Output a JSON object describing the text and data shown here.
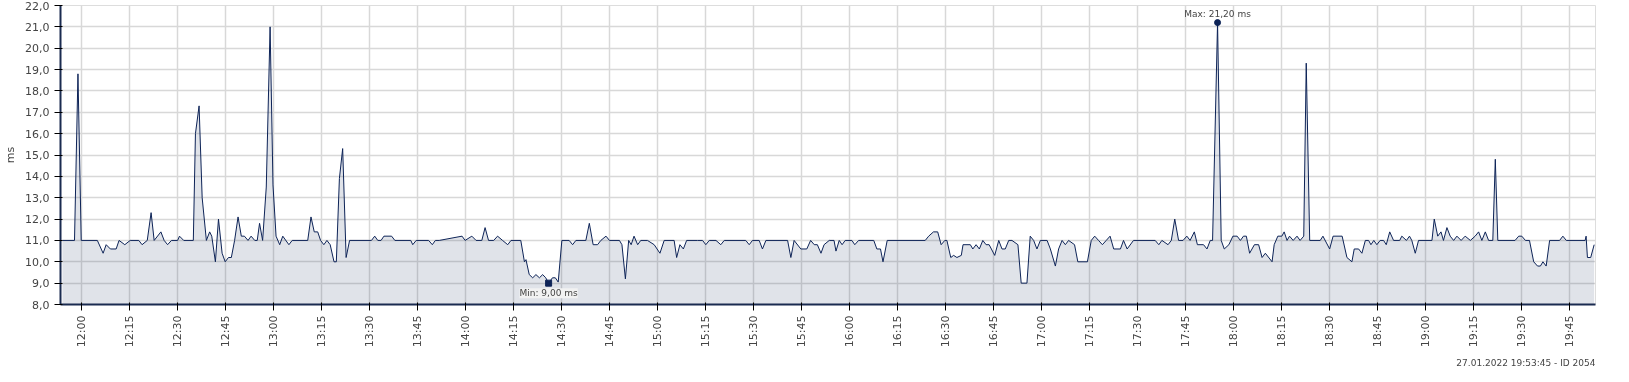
{
  "chart_data": {
    "type": "area",
    "ylabel": "ms",
    "grid": true,
    "marker": "none",
    "xlim": [
      11.89,
      19.887
    ],
    "ylim": [
      8,
      22
    ],
    "yticks": [
      {
        "value": 8,
        "label": "8,0"
      },
      {
        "value": 9,
        "label": "9,0"
      },
      {
        "value": 10,
        "label": "10,0"
      },
      {
        "value": 11,
        "label": "11,0"
      },
      {
        "value": 12,
        "label": "12,0"
      },
      {
        "value": 13,
        "label": "13,0"
      },
      {
        "value": 14,
        "label": "14,0"
      },
      {
        "value": 15,
        "label": "15,0"
      },
      {
        "value": 16,
        "label": "16,0"
      },
      {
        "value": 17,
        "label": "17,0"
      },
      {
        "value": 18,
        "label": "18,0"
      },
      {
        "value": 19,
        "label": "19,0"
      },
      {
        "value": 20,
        "label": "20,0"
      },
      {
        "value": 21,
        "label": "21,0"
      },
      {
        "value": 22,
        "label": "22,0"
      }
    ],
    "xticks": [
      {
        "value": 12,
        "label": "12:00"
      },
      {
        "value": 12.25,
        "label": "12:15"
      },
      {
        "value": 12.5,
        "label": "12:30"
      },
      {
        "value": 12.75,
        "label": "12:45"
      },
      {
        "value": 13,
        "label": "13:00"
      },
      {
        "value": 13.25,
        "label": "13:15"
      },
      {
        "value": 13.5,
        "label": "13:30"
      },
      {
        "value": 13.75,
        "label": "13:45"
      },
      {
        "value": 14,
        "label": "14:00"
      },
      {
        "value": 14.25,
        "label": "14:15"
      },
      {
        "value": 14.5,
        "label": "14:30"
      },
      {
        "value": 14.75,
        "label": "14:45"
      },
      {
        "value": 15,
        "label": "15:00"
      },
      {
        "value": 15.25,
        "label": "15:15"
      },
      {
        "value": 15.5,
        "label": "15:30"
      },
      {
        "value": 15.75,
        "label": "15:45"
      },
      {
        "value": 16,
        "label": "16:00"
      },
      {
        "value": 16.25,
        "label": "16:15"
      },
      {
        "value": 16.5,
        "label": "16:30"
      },
      {
        "value": 16.75,
        "label": "16:45"
      },
      {
        "value": 17,
        "label": "17:00"
      },
      {
        "value": 17.25,
        "label": "17:15"
      },
      {
        "value": 17.5,
        "label": "17:30"
      },
      {
        "value": 17.75,
        "label": "17:45"
      },
      {
        "value": 18,
        "label": "18:00"
      },
      {
        "value": 18.25,
        "label": "18:15"
      },
      {
        "value": 18.5,
        "label": "18:30"
      },
      {
        "value": 18.75,
        "label": "18:45"
      },
      {
        "value": 19,
        "label": "19:00"
      },
      {
        "value": 19.25,
        "label": "19:15"
      },
      {
        "value": 19.5,
        "label": "19:30"
      },
      {
        "value": 19.75,
        "label": "19:45"
      }
    ],
    "annotations": [
      {
        "text": "Min: 9,00 ms",
        "x": 14.433,
        "y": 9.0
      },
      {
        "text": "Max: 21,20 ms",
        "x": 17.918,
        "y": 21.2
      },
      "27.01.2022 19:53:45 - ID 2054"
    ],
    "series": [
      {
        "color": "#0d2357",
        "x": [
          11.9,
          11.963,
          11.981,
          11.998,
          12.082,
          12.112,
          12.128,
          12.15,
          12.18,
          12.195,
          12.225,
          12.253,
          12.298,
          12.315,
          12.342,
          12.362,
          12.378,
          12.413,
          12.43,
          12.448,
          12.468,
          12.5,
          12.51,
          12.532,
          12.582,
          12.593,
          12.612,
          12.628,
          12.65,
          12.667,
          12.678,
          12.697,
          12.713,
          12.732,
          12.748,
          12.765,
          12.78,
          12.797,
          12.815,
          12.832,
          12.848,
          12.867,
          12.883,
          12.902,
          12.915,
          12.927,
          12.943,
          12.962,
          12.982,
          12.997,
          13.013,
          13.032,
          13.048,
          13.08,
          13.097,
          13.178,
          13.195,
          13.212,
          13.23,
          13.245,
          13.262,
          13.278,
          13.295,
          13.315,
          13.327,
          13.343,
          13.36,
          13.378,
          13.396,
          13.51,
          13.527,
          13.543,
          13.56,
          13.575,
          13.615,
          13.632,
          13.715,
          13.725,
          13.743,
          13.808,
          13.827,
          13.843,
          13.863,
          13.982,
          13.998,
          14.033,
          14.055,
          14.085,
          14.102,
          14.12,
          14.147,
          14.167,
          14.193,
          14.22,
          14.237,
          14.288,
          14.307,
          14.315,
          14.332,
          14.35,
          14.367,
          14.385,
          14.402,
          14.418,
          14.433,
          14.453,
          14.468,
          14.483,
          14.502,
          14.54,
          14.558,
          14.575,
          14.627,
          14.645,
          14.665,
          14.688,
          14.705,
          14.732,
          14.75,
          14.802,
          14.815,
          14.833,
          14.85,
          14.863,
          14.878,
          14.897,
          14.913,
          14.948,
          14.983,
          15.013,
          15.035,
          15.087,
          15.1,
          15.117,
          15.135,
          15.152,
          15.208,
          15.235,
          15.252,
          15.27,
          15.305,
          15.33,
          15.348,
          15.46,
          15.478,
          15.495,
          15.53,
          15.547,
          15.565,
          15.678,
          15.695,
          15.712,
          15.747,
          15.778,
          15.798,
          15.817,
          15.833,
          15.852,
          15.868,
          15.895,
          15.92,
          15.93,
          15.947,
          15.962,
          15.978,
          16.013,
          16.028,
          16.048,
          16.127,
          16.143,
          16.162,
          16.175,
          16.197,
          16.395,
          16.413,
          16.438,
          16.46,
          16.478,
          16.497,
          16.508,
          16.528,
          16.543,
          16.56,
          16.583,
          16.592,
          16.63,
          16.643,
          16.66,
          16.677,
          16.695,
          16.712,
          16.728,
          16.757,
          16.778,
          16.795,
          16.812,
          16.83,
          16.847,
          16.878,
          16.895,
          16.925,
          16.942,
          16.96,
          16.977,
          16.995,
          17.03,
          17.047,
          17.073,
          17.09,
          17.108,
          17.125,
          17.142,
          17.173,
          17.19,
          17.24,
          17.26,
          17.278,
          17.298,
          17.318,
          17.338,
          17.358,
          17.377,
          17.412,
          17.428,
          17.447,
          17.48,
          17.593,
          17.612,
          17.628,
          17.66,
          17.677,
          17.695,
          17.715,
          17.738,
          17.758,
          17.775,
          17.797,
          17.813,
          17.845,
          17.863,
          17.88,
          17.892,
          17.918,
          17.937,
          17.953,
          17.977,
          17.998,
          18.02,
          18.037,
          18.053,
          18.068,
          18.085,
          18.11,
          18.132,
          18.15,
          18.167,
          18.202,
          18.213,
          18.232,
          18.253,
          18.265,
          18.28,
          18.293,
          18.312,
          18.332,
          18.348,
          18.367,
          18.38,
          18.398,
          18.453,
          18.467,
          18.502,
          18.52,
          18.567,
          18.592,
          18.618,
          18.63,
          18.653,
          18.67,
          18.688,
          18.705,
          18.717,
          18.732,
          18.748,
          18.765,
          18.783,
          18.797,
          18.815,
          18.835,
          18.867,
          18.878,
          18.902,
          18.918,
          18.93,
          18.948,
          18.965,
          19.035,
          19.047,
          19.065,
          19.082,
          19.095,
          19.113,
          19.13,
          19.148,
          19.165,
          19.187,
          19.208,
          19.235,
          19.26,
          19.278,
          19.295,
          19.313,
          19.33,
          19.352,
          19.365,
          19.378,
          19.468,
          19.487,
          19.503,
          19.522,
          19.543,
          19.565,
          19.585,
          19.6,
          19.613,
          19.63,
          19.648,
          19.7,
          19.717,
          19.735,
          19.833,
          19.838,
          19.845,
          19.862,
          19.88
        ],
        "values": [
          11,
          11,
          18.8,
          11,
          11,
          10.4,
          10.8,
          10.6,
          10.6,
          11,
          10.8,
          11,
          11,
          10.8,
          11,
          12.3,
          11,
          11.4,
          11,
          10.8,
          11,
          11,
          11.2,
          11,
          11,
          16.0,
          17.3,
          13.0,
          11,
          11.4,
          11.2,
          10.0,
          12.0,
          10.4,
          10.0,
          10.2,
          10.2,
          11,
          12.1,
          11.2,
          11.2,
          11,
          11.2,
          11,
          11,
          11.8,
          11,
          13.5,
          21.0,
          13.6,
          11.2,
          10.8,
          11.2,
          10.8,
          11,
          11,
          12.1,
          11.4,
          11.4,
          11,
          10.8,
          11,
          10.8,
          10.0,
          10.0,
          13.9,
          15.3,
          10.2,
          11,
          11,
          11.2,
          11,
          11,
          11.2,
          11.2,
          11,
          11,
          10.8,
          11,
          11,
          10.8,
          11,
          11,
          11.2,
          11,
          11.2,
          11,
          11,
          11.6,
          11,
          11,
          11.2,
          11,
          10.8,
          11,
          11,
          10.0,
          10.1,
          9.4,
          9.25,
          9.4,
          9.25,
          9.4,
          9.25,
          9.0,
          9.25,
          9.25,
          9.05,
          11,
          11,
          10.8,
          11,
          11,
          11.8,
          10.8,
          10.8,
          11,
          11.2,
          11,
          11,
          10.8,
          9.2,
          11,
          10.8,
          11.2,
          10.8,
          11,
          11,
          10.8,
          10.4,
          11,
          11,
          10.2,
          10.8,
          10.6,
          11,
          11,
          11,
          10.8,
          11,
          11,
          10.8,
          11,
          11,
          10.8,
          11,
          11,
          10.6,
          11,
          11,
          10.2,
          11,
          10.6,
          10.6,
          11,
          10.8,
          10.8,
          10.4,
          10.8,
          11,
          11,
          10.5,
          11,
          10.8,
          11,
          11,
          10.8,
          11,
          11,
          10.6,
          10.6,
          10.0,
          11,
          11,
          11.2,
          11.4,
          11.4,
          10.8,
          11,
          11,
          10.2,
          10.3,
          10.2,
          10.3,
          10.8,
          10.8,
          10.6,
          10.8,
          10.6,
          11,
          10.8,
          10.8,
          10.3,
          11,
          10.6,
          10.6,
          11,
          11,
          10.8,
          9.0,
          9.0,
          11.2,
          11,
          10.6,
          11,
          11,
          10.6,
          9.8,
          10.6,
          11,
          10.8,
          11,
          10.8,
          10.0,
          10.0,
          11,
          11.2,
          11,
          10.8,
          11,
          11.2,
          10.6,
          10.6,
          11,
          10.6,
          11,
          11,
          10.8,
          11,
          10.8,
          11,
          12.0,
          11,
          11,
          11.2,
          11,
          11.4,
          10.8,
          10.8,
          10.6,
          11,
          11,
          21.2,
          11,
          10.6,
          10.8,
          11.2,
          11.2,
          11,
          11.2,
          11.2,
          10.4,
          10.8,
          10.8,
          10.2,
          10.4,
          10.0,
          10.8,
          11.2,
          11.2,
          11.4,
          11,
          11.2,
          11,
          11.2,
          11,
          11.2,
          19.3,
          11,
          11,
          11.2,
          10.6,
          11.2,
          11.2,
          10.2,
          10.0,
          10.6,
          10.6,
          10.4,
          11,
          11,
          10.8,
          11,
          10.8,
          11,
          11,
          10.8,
          11.4,
          11,
          11,
          11.2,
          11,
          11.2,
          11,
          10.4,
          11,
          11,
          12.0,
          11.2,
          11.4,
          11,
          11.6,
          11.2,
          11,
          11.2,
          11,
          11.2,
          11,
          11.2,
          11.4,
          11,
          11.4,
          11,
          11,
          14.8,
          11,
          11,
          11.2,
          11.2,
          11,
          11,
          10.0,
          9.8,
          9.8,
          10.0,
          9.8,
          11,
          11,
          11.2,
          11,
          11,
          11.2,
          10.2,
          10.2,
          10.8
        ]
      }
    ]
  }
}
